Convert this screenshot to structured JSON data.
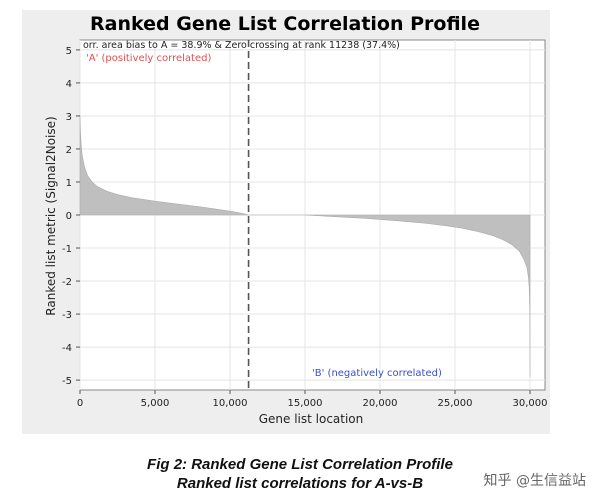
{
  "colors": {
    "panel": "#eeeeee",
    "plot_bg": "#ffffff",
    "area": "#bfbfbf",
    "pos_label": "#e05050",
    "neg_label": "#3a50c8",
    "zero_line": "#555555"
  },
  "chart_data": {
    "type": "area",
    "title": "Ranked Gene List Correlation Profile",
    "xlabel": "Gene list location",
    "ylabel": "Ranked list metric (Signal2Noise)",
    "xlim": [
      0,
      31000
    ],
    "ylim": [
      -5.3,
      5.3
    ],
    "xticks": [
      0,
      5000,
      10000,
      15000,
      20000,
      25000,
      30000
    ],
    "xtick_labels": [
      "0",
      "5,000",
      "10,000",
      "15,000",
      "20,000",
      "25,000",
      "30,000"
    ],
    "yticks": [
      5,
      4,
      3,
      2,
      1,
      0,
      -1,
      -2,
      -3,
      -4,
      -5
    ],
    "ytick_labels": [
      "5",
      "4",
      "3",
      "2",
      "1",
      "0",
      "-1",
      "-2",
      "-3",
      "-4",
      "-5"
    ],
    "grid": true,
    "zero_crossing_rank": 11238,
    "annotation_top": "orr. area bias to A = 38.9% & Zero crossing at rank 11238 (37.4%)",
    "label_positive": "'A' (positively correlated)",
    "label_negative": "'B' (negatively correlated)",
    "series": [
      {
        "x": [
          0,
          30,
          80,
          150,
          300,
          500,
          800,
          1200,
          1800,
          2500,
          3500,
          5000,
          6500,
          8000,
          9500,
          10500,
          11000,
          11238,
          13000,
          15000,
          17000,
          19000,
          21000,
          23000,
          24500,
          25500,
          26500,
          27500,
          28200,
          28800,
          29300,
          29600,
          29800,
          29900,
          29960,
          29990,
          30000
        ],
        "y": [
          3.0,
          2.5,
          2.1,
          1.8,
          1.45,
          1.2,
          1.0,
          0.85,
          0.72,
          0.62,
          0.52,
          0.42,
          0.33,
          0.25,
          0.15,
          0.08,
          0.03,
          0.0,
          0.0,
          0.0,
          -0.05,
          -0.1,
          -0.17,
          -0.25,
          -0.33,
          -0.4,
          -0.5,
          -0.62,
          -0.75,
          -0.9,
          -1.1,
          -1.35,
          -1.6,
          -1.9,
          -2.3,
          -3.0,
          -4.9
        ]
      }
    ]
  },
  "caption": {
    "line1": "Fig 2: Ranked Gene List Correlation Profile",
    "line2": "Ranked list correlations for A-vs-B"
  },
  "watermark": "知乎 @生信益站"
}
